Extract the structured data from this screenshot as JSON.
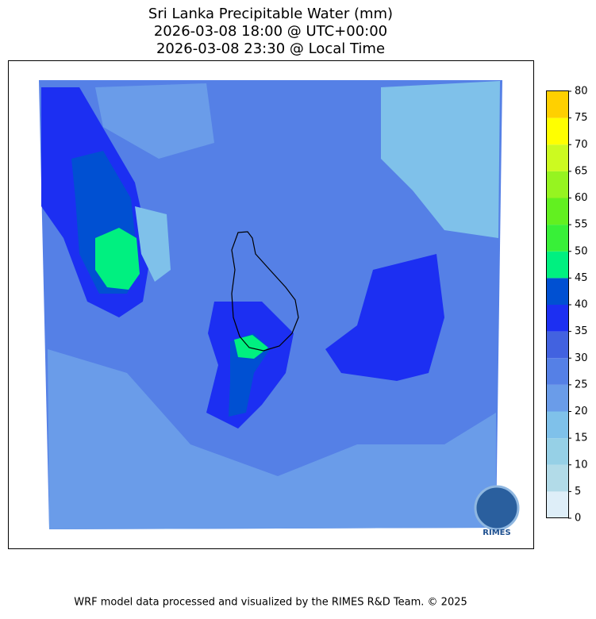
{
  "title": [
    "Sri Lanka Precipitable Water (mm)",
    "2026-03-08 18:00 @ UTC+00:00",
    "2026-03-08 23:30 @ Local Time"
  ],
  "colorbar": {
    "levels": [
      0,
      5,
      10,
      15,
      20,
      25,
      30,
      35,
      40,
      45,
      50,
      55,
      60,
      65,
      70,
      75,
      80
    ],
    "colors": [
      "#deeef8",
      "#b2dbe8",
      "#96d0e6",
      "#7fc1ea",
      "#6a9ce9",
      "#5580e6",
      "#4262e0",
      "#1c2ff2",
      "#0050d2",
      "#00f080",
      "#38f038",
      "#62f020",
      "#96f420",
      "#ccfa20",
      "#ffff00",
      "#ffd000"
    ]
  },
  "logo": "RIMES",
  "footer": "WRF model data processed and visualized by the RIMES R&D Team. © 2025"
}
